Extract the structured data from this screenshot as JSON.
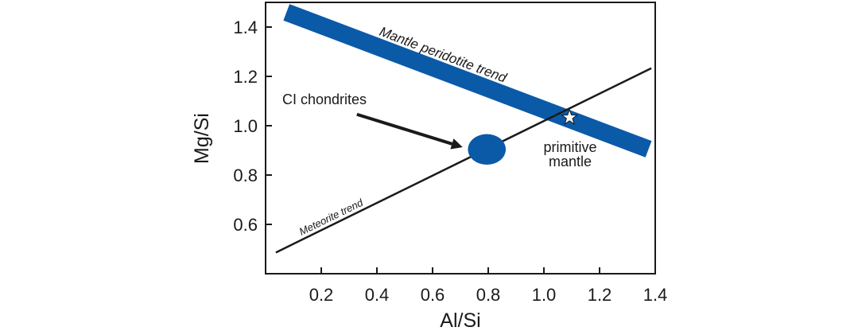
{
  "chart_data": {
    "type": "line",
    "xlabel": "Al/Si",
    "ylabel": "Mg/Si",
    "xlim": [
      0,
      1.4
    ],
    "ylim": [
      0.4,
      1.5
    ],
    "xticks": [
      "0.2",
      "0.4",
      "0.6",
      "0.8",
      "1.0",
      "1.2",
      "1.4"
    ],
    "xtick_values": [
      0.2,
      0.4,
      0.6,
      0.8,
      1.0,
      1.2,
      1.4
    ],
    "yticks": [
      "0.6",
      "0.8",
      "1.0",
      "1.2",
      "1.4"
    ],
    "ytick_values": [
      0.6,
      0.8,
      1.0,
      1.2,
      1.4
    ],
    "grid": false,
    "series": [
      {
        "name": "Meteorite trend",
        "x": [
          0.037,
          1.386
        ],
        "y": [
          0.486,
          1.233
        ],
        "color": "#1a1a1a"
      },
      {
        "name": "Mantle peridotite trend",
        "x": [
          0.075,
          1.376
        ],
        "y": [
          1.46,
          0.905
        ],
        "color": "#0a5aa8"
      }
    ],
    "ci_chondrites": {
      "label": "CI chondrites",
      "x": 0.795,
      "y": 0.904,
      "x_span": 0.136,
      "y_span": 0.124,
      "color": "#0a5aa8"
    },
    "primitive_mantle": {
      "label_line1": "primitive",
      "label_line2": "mantle",
      "x": 1.092,
      "y": 1.033
    },
    "arrow": {
      "from": [
        0.328,
        1.046
      ],
      "to": [
        0.708,
        0.913
      ]
    }
  }
}
